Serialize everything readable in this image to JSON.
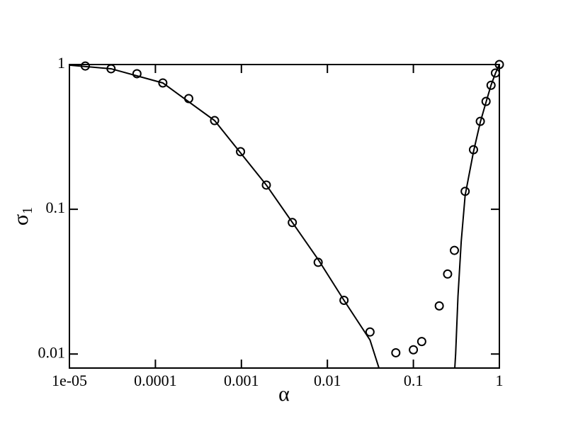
{
  "chart_data": {
    "type": "scatter_line",
    "x_label": "α",
    "y_label": "σ",
    "y_label_subscript": "1",
    "xscale": "log",
    "yscale": "log",
    "xlim": [
      1e-05,
      1
    ],
    "ylim": [
      0.008,
      1
    ],
    "xticks": [
      {
        "value": 1e-05,
        "label": "1e-05"
      },
      0.0001,
      0.001,
      0.01,
      0.1,
      1
    ],
    "yticks": [
      0.01,
      0.1,
      1
    ],
    "series": [
      {
        "kind": "markers",
        "color": "#000000",
        "x": [
          1.53e-05,
          3.05e-05,
          6.1e-05,
          0.000122,
          0.000244,
          0.000488,
          0.000977,
          0.00195,
          0.00391,
          0.00781,
          0.0156,
          0.0313,
          0.0625,
          0.1,
          0.125,
          0.2,
          0.25,
          0.3,
          0.4,
          0.5,
          0.6,
          0.7,
          0.8,
          0.9,
          1
        ],
        "values": [
          0.977,
          0.935,
          0.864,
          0.746,
          0.582,
          0.41,
          0.25,
          0.147,
          0.081,
          0.043,
          0.0235,
          0.0142,
          0.0102,
          0.0107,
          0.0122,
          0.0215,
          0.0357,
          0.052,
          0.133,
          0.258,
          0.405,
          0.556,
          0.719,
          0.874,
          1.0
        ]
      },
      {
        "kind": "line",
        "color": "#000000",
        "x": [
          1e-05,
          3.05e-05,
          0.000122,
          0.000488,
          0.00195,
          0.00781,
          0.0156,
          0.0313,
          0.0398
        ],
        "values": [
          0.99,
          0.935,
          0.746,
          0.41,
          0.147,
          0.045,
          0.0235,
          0.0125,
          0.008
        ]
      },
      {
        "kind": "line",
        "color": "#000000",
        "x": [
          0.303,
          0.31,
          0.33,
          0.36,
          0.4,
          0.5,
          0.6,
          0.7,
          0.8,
          0.9,
          1
        ],
        "values": [
          0.008,
          0.01,
          0.025,
          0.06,
          0.125,
          0.25,
          0.4,
          0.55,
          0.72,
          0.87,
          1
        ]
      }
    ]
  }
}
